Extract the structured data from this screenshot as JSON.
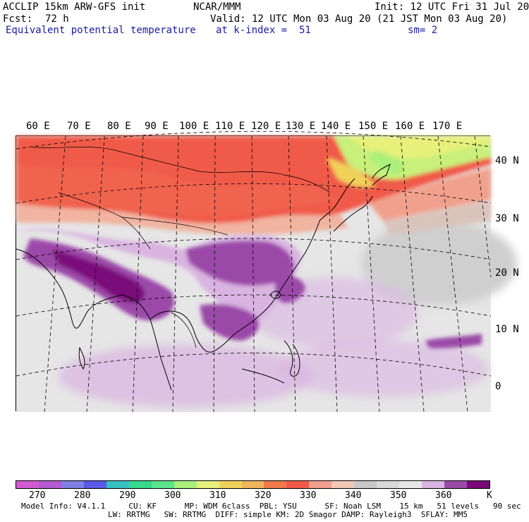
{
  "header": {
    "model_line": "ACCLIP 15km ARW-GFS init",
    "center": "NCAR/MMM",
    "init": "Init: 12 UTC Fri 31 Jul 20",
    "fcst_label": "Fcst:",
    "fcst_value": "72 h",
    "valid": "Valid: 12 UTC Mon 03 Aug 20 (21 JST Mon 03 Aug 20)",
    "field_name": "Equivalent potential temperature",
    "level": "at k-index =  51",
    "smoothing": "sm= 2"
  },
  "map": {
    "lon_labels": [
      "60 E",
      "70 E",
      "80 E",
      "90 E",
      "100 E",
      "110 E",
      "120 E",
      "130 E",
      "140 E",
      "150 E",
      "160 E",
      "170 E"
    ],
    "lat_labels": [
      "40 N",
      "30 N",
      "20 N",
      "10 N",
      "0"
    ]
  },
  "colorbar": {
    "colors": [
      "#d25bd2",
      "#b35bd2",
      "#7f7fe6",
      "#5a5ae6",
      "#36c0c0",
      "#36d98c",
      "#5ae68c",
      "#aaf07a",
      "#e6f07a",
      "#f0d25a",
      "#f0b45a",
      "#f07a4a",
      "#f05a4a",
      "#f0a08c",
      "#f0c8b4",
      "#c8c8c8",
      "#d9d9d9",
      "#e8e8e8",
      "#d9b4e1",
      "#9b4aa8",
      "#7a0a7a"
    ],
    "tick_labels": [
      "270",
      "280",
      "290",
      "300",
      "310",
      "320",
      "330",
      "340",
      "350",
      "360"
    ],
    "unit": "K"
  },
  "footer": {
    "line1": "Model Info: V4.1.1     CU: KF      MP: WDM 6class  PBL: YSU      SF: Noah LSM    15 km   51 levels   90 sec",
    "line2": "LW: RRTMG   SW: RRTMG  DIFF: simple KM: 2D Smagor DAMP: Rayleigh3  SFLAY: MM5"
  }
}
